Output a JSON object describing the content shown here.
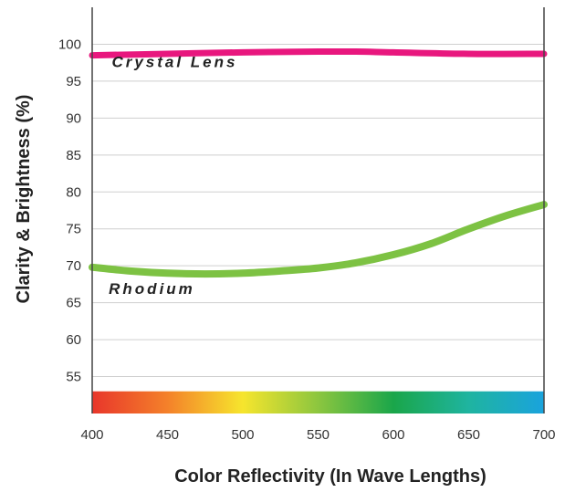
{
  "chart_data": {
    "type": "line",
    "xlabel": "Color Reflectivity (In Wave Lengths)",
    "ylabel": "Clarity & Brightness (%)",
    "xlim": [
      400,
      700
    ],
    "ylim": [
      50,
      105
    ],
    "xticks": [
      400,
      450,
      500,
      550,
      600,
      650,
      700
    ],
    "yticks": [
      55,
      60,
      65,
      70,
      75,
      80,
      85,
      90,
      95,
      100
    ],
    "grid": "horizontal",
    "legend": "inline labels",
    "spectrum_band": {
      "y_range": [
        50,
        53
      ],
      "colors": [
        "#e8362b",
        "#f4812a",
        "#f6e52d",
        "#8cc63f",
        "#1aa64a",
        "#1fb4a0",
        "#1aa3dd"
      ]
    },
    "series": [
      {
        "name": "Crystal Lens",
        "color": "#e8177e",
        "label_at": [
          413,
          96.9
        ],
        "x": [
          400,
          450,
          500,
          550,
          575,
          600,
          650,
          700
        ],
        "y": [
          98.5,
          98.7,
          98.9,
          99.0,
          99.0,
          98.9,
          98.7,
          98.7
        ]
      },
      {
        "name": "Rhodium",
        "color": "#7dc243",
        "label_at": [
          411,
          66.2
        ],
        "x": [
          400,
          425,
          450,
          475,
          500,
          525,
          550,
          575,
          600,
          625,
          650,
          675,
          700
        ],
        "y": [
          69.8,
          69.3,
          69.0,
          68.9,
          69.0,
          69.3,
          69.7,
          70.4,
          71.5,
          73.0,
          75.0,
          76.8,
          78.3
        ]
      }
    ]
  }
}
